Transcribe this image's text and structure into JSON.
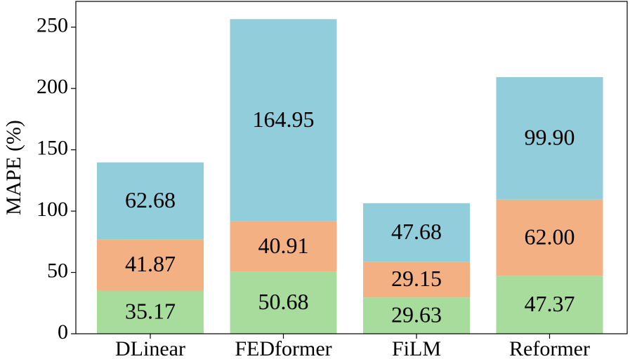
{
  "chart_data": {
    "type": "stacked_bar",
    "ylabel": "MAPE (%)",
    "categories": [
      "DLinear",
      "FEDformer",
      "FiLM",
      "Reformer"
    ],
    "series": [
      {
        "color": "#a8dc9c",
        "values": [
          35.17,
          50.68,
          29.63,
          47.37
        ],
        "value_labels": [
          "35.17",
          "50.68",
          "29.63",
          "47.37"
        ]
      },
      {
        "color": "#f3b083",
        "values": [
          41.87,
          40.91,
          29.15,
          62.0
        ],
        "value_labels": [
          "41.87",
          "40.91",
          "29.15",
          "62.00"
        ]
      },
      {
        "color": "#92cddb",
        "values": [
          62.68,
          164.95,
          47.68,
          99.9
        ],
        "value_labels": [
          "62.68",
          "164.95",
          "47.68",
          "99.90"
        ]
      }
    ],
    "ylim": [
      0,
      271
    ],
    "yticks": [
      0,
      50,
      100,
      150,
      200,
      250
    ]
  }
}
